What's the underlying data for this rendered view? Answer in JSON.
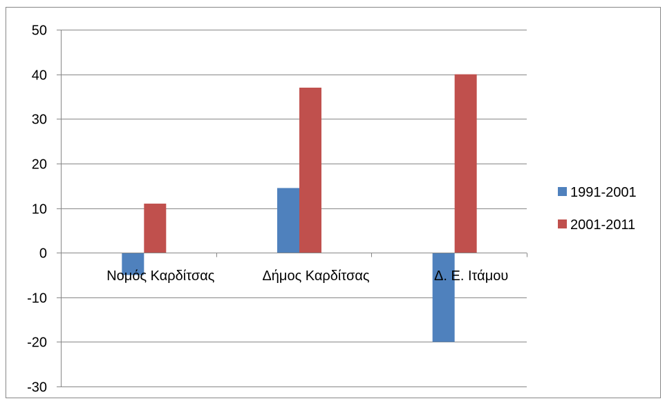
{
  "chart_data": {
    "type": "bar",
    "title": "",
    "xlabel": "",
    "ylabel": "",
    "categories": [
      "Νομός Καρδίτσας",
      "Δήμος Καρδίτσας",
      "Δ. Ε. Ιτάμου"
    ],
    "series": [
      {
        "name": "1991-2001",
        "values": [
          -5,
          14.5,
          -20
        ],
        "color": "#4F81BD"
      },
      {
        "name": "2001-2011",
        "values": [
          11,
          37,
          40
        ],
        "color": "#C0504D"
      }
    ],
    "ylim": [
      -30,
      50
    ],
    "yticks": [
      -30,
      -20,
      -10,
      0,
      10,
      20,
      30,
      40,
      50
    ],
    "grid": true,
    "legend_position": "right",
    "gridline_color": "#868686",
    "axis_color": "#868686"
  }
}
